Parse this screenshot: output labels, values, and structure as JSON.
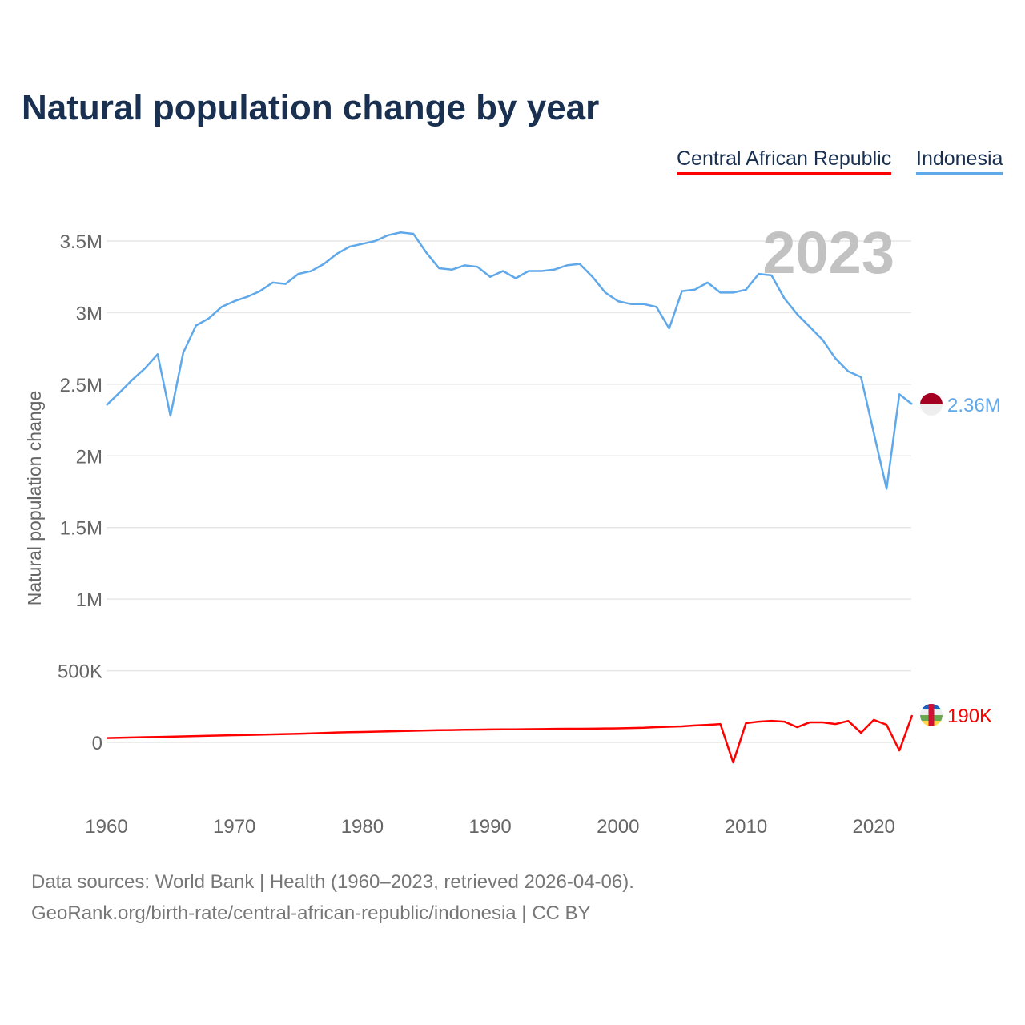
{
  "chart_data": {
    "type": "line",
    "title": "Natural population change by year",
    "xlabel": "",
    "ylabel": "Natural population change",
    "xlim": [
      1960,
      2023
    ],
    "ylim": [
      -350000,
      3700000
    ],
    "grid": true,
    "legend_placement": "top-right",
    "year_watermark": "2023",
    "x_ticks": [
      1960,
      1970,
      1980,
      1990,
      2000,
      2010,
      2020
    ],
    "x_tick_labels": [
      "1960",
      "1970",
      "1980",
      "1990",
      "2000",
      "2010",
      "2020"
    ],
    "y_ticks": [
      0,
      500000,
      1000000,
      1500000,
      2000000,
      2500000,
      3000000,
      3500000
    ],
    "y_tick_labels": [
      "0",
      "500K",
      "1M",
      "1.5M",
      "2M",
      "2.5M",
      "3M",
      "3.5M"
    ],
    "x": [
      1960,
      1961,
      1962,
      1963,
      1964,
      1965,
      1966,
      1967,
      1968,
      1969,
      1970,
      1971,
      1972,
      1973,
      1974,
      1975,
      1976,
      1977,
      1978,
      1979,
      1980,
      1981,
      1982,
      1983,
      1984,
      1985,
      1986,
      1987,
      1988,
      1989,
      1990,
      1991,
      1992,
      1993,
      1994,
      1995,
      1996,
      1997,
      1998,
      1999,
      2000,
      2001,
      2002,
      2003,
      2004,
      2005,
      2006,
      2007,
      2008,
      2009,
      2010,
      2011,
      2012,
      2013,
      2014,
      2015,
      2016,
      2017,
      2018,
      2019,
      2020,
      2021,
      2022,
      2023
    ],
    "series": [
      {
        "name": "Central African Republic",
        "color": "#ff0000",
        "end_label": "190K",
        "values": [
          30000,
          32000,
          34000,
          36000,
          38000,
          40000,
          42000,
          44000,
          46000,
          48000,
          50000,
          52000,
          54000,
          56000,
          58000,
          60000,
          63000,
          66000,
          69000,
          71000,
          73000,
          75000,
          77000,
          79000,
          81000,
          83000,
          85000,
          86000,
          88000,
          89000,
          90000,
          91000,
          91000,
          92000,
          93000,
          94000,
          95000,
          95000,
          96000,
          97000,
          98000,
          100000,
          102000,
          106000,
          109000,
          112000,
          118000,
          122000,
          128000,
          -140000,
          134000,
          145000,
          150000,
          145000,
          106000,
          140000,
          140000,
          128000,
          150000,
          67000,
          157000,
          123000,
          -56000,
          190000
        ]
      },
      {
        "name": "Indonesia",
        "color": "#5fa8ea",
        "end_label": "2.36M",
        "values": [
          2354000,
          2440000,
          2530000,
          2610000,
          2710000,
          2280000,
          2720000,
          2910000,
          2960000,
          3040000,
          3080000,
          3110000,
          3150000,
          3210000,
          3200000,
          3270000,
          3290000,
          3340000,
          3410000,
          3460000,
          3480000,
          3500000,
          3540000,
          3560000,
          3550000,
          3420000,
          3310000,
          3300000,
          3330000,
          3320000,
          3250000,
          3290000,
          3240000,
          3290000,
          3290000,
          3300000,
          3330000,
          3340000,
          3250000,
          3140000,
          3080000,
          3060000,
          3060000,
          3040000,
          2890000,
          3150000,
          3160000,
          3210000,
          3140000,
          3140000,
          3160000,
          3270000,
          3260000,
          3100000,
          2990000,
          2900000,
          2810000,
          2680000,
          2590000,
          2550000,
          2160000,
          1770000,
          2430000,
          2360000
        ]
      }
    ]
  },
  "footer": {
    "line1": "Data sources: World Bank | Health (1960–2023, retrieved 2026-04-06).",
    "line2": "GeoRank.org/birth-rate/central-african-republic/indonesia | CC BY"
  }
}
